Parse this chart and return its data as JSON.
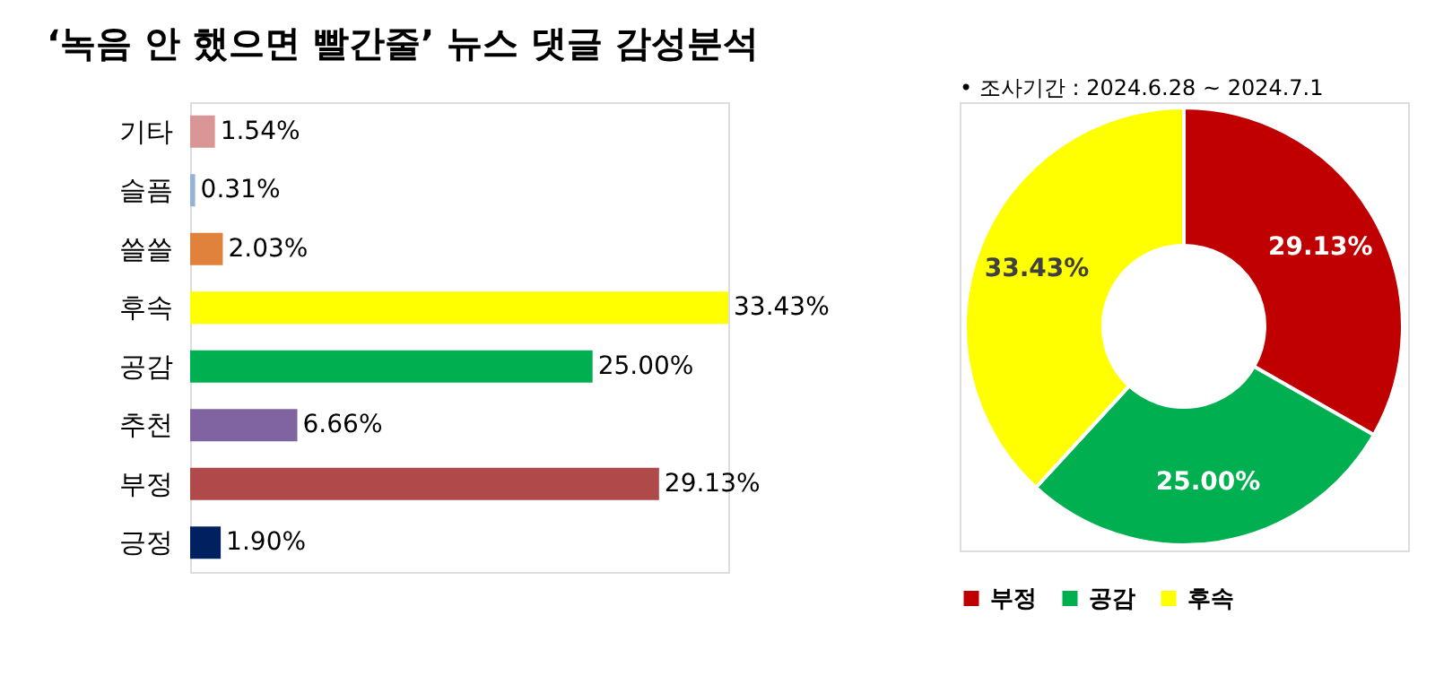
{
  "chart_data": [
    {
      "type": "bar",
      "orientation": "horizontal",
      "title": "‘녹음 안 했으면 빨간줄’ 뉴스 댓글 감성분석",
      "categories": [
        "기타",
        "슬픔",
        "쓸쓸",
        "후속",
        "공감",
        "추천",
        "부정",
        "긍정"
      ],
      "values": [
        1.54,
        0.31,
        2.03,
        33.43,
        25.0,
        6.66,
        29.13,
        1.9
      ],
      "colors": [
        "#d99694",
        "#95b3d7",
        "#e0823c",
        "#ffff00",
        "#00b050",
        "#8064a2",
        "#b04a4a",
        "#002060"
      ],
      "value_labels": [
        "1.54%",
        "0.31%",
        "2.03%",
        "33.43%",
        "25.00%",
        "6.66%",
        "29.13%",
        "1.90%"
      ],
      "tick_labels": "y"
    },
    {
      "type": "donut",
      "categories": [
        "부정",
        "공감",
        "후속"
      ],
      "values": [
        29.13,
        25.0,
        33.43
      ],
      "colors": [
        "#c00000",
        "#00b050",
        "#ffff00"
      ],
      "value_labels": [
        "29.13%",
        "25.00%",
        "33.43%"
      ],
      "legend": "bottom",
      "annotations": [
        "•   조사기간 : 2024.6.28 ~ 2024.7.1"
      ]
    }
  ]
}
